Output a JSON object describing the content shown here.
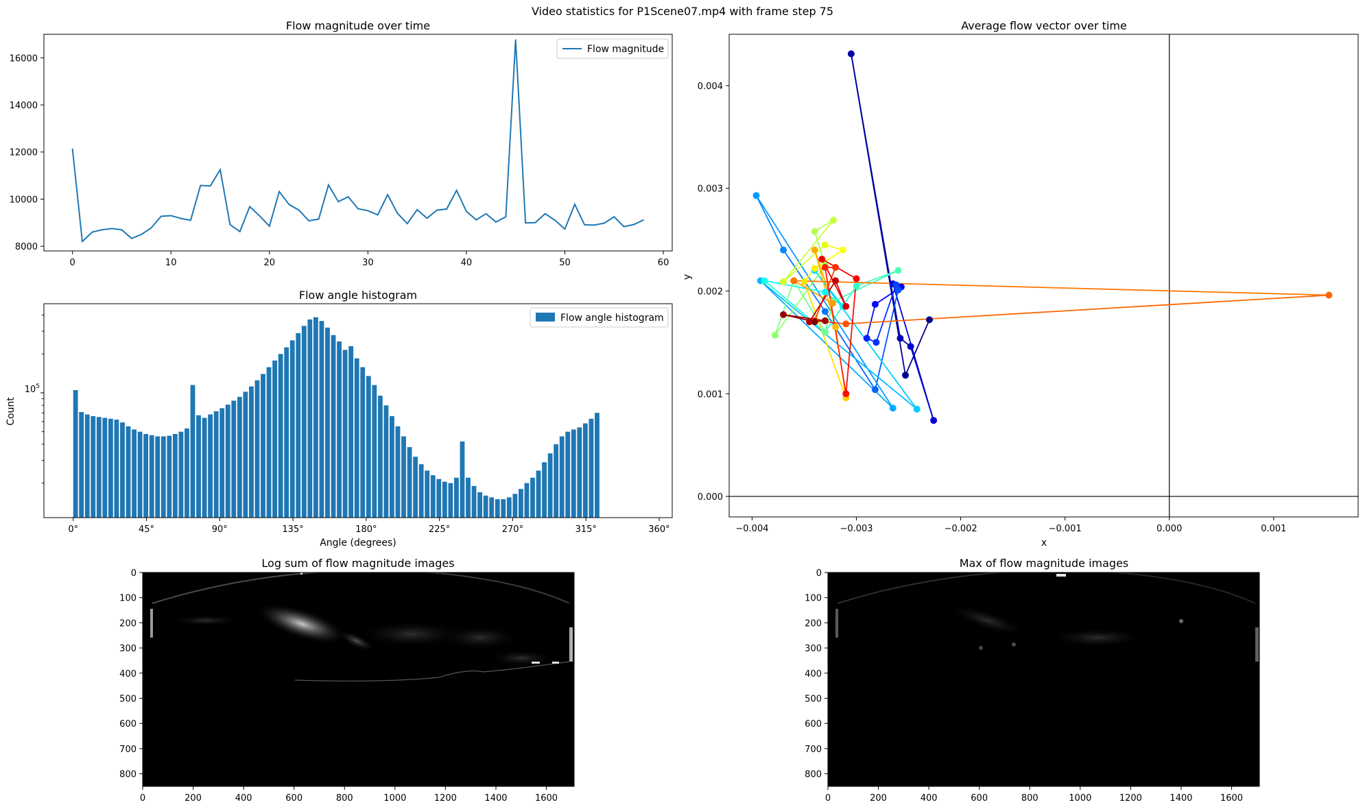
{
  "suptitle": "Video statistics for P1Scene07.mp4 with frame step 75",
  "chart_data": [
    {
      "type": "line",
      "title": "Flow magnitude over time",
      "xlabel": "",
      "ylabel": "",
      "legend": {
        "labels": [
          "Flow magnitude"
        ],
        "placement": "top-right"
      },
      "xlim": [
        -2.9,
        60.9
      ],
      "ylim": [
        7800,
        17000
      ],
      "xticks": [
        0,
        10,
        20,
        30,
        40,
        50,
        60
      ],
      "yticks": [
        8000,
        10000,
        12000,
        14000,
        16000
      ],
      "series": [
        {
          "name": "Flow magnitude",
          "color": "#1f77b4",
          "x": [
            0,
            1,
            2,
            3,
            4,
            5,
            6,
            7,
            8,
            9,
            10,
            11,
            12,
            13,
            14,
            15,
            16,
            17,
            18,
            19,
            20,
            21,
            22,
            23,
            24,
            25,
            26,
            27,
            28,
            29,
            30,
            31,
            32,
            33,
            34,
            35,
            36,
            37,
            38,
            39,
            40,
            41,
            42,
            43,
            44,
            45,
            46,
            47,
            48,
            49,
            50,
            51,
            52,
            53,
            54,
            55,
            56,
            57,
            58
          ],
          "values": [
            12150,
            8200,
            8600,
            8700,
            8750,
            8700,
            8330,
            8500,
            8780,
            9270,
            9300,
            9180,
            9100,
            10580,
            10560,
            11250,
            8920,
            8620,
            9680,
            9290,
            8850,
            10320,
            9770,
            9530,
            9080,
            9150,
            10600,
            9890,
            10100,
            9590,
            9510,
            9330,
            10190,
            9400,
            8960,
            9550,
            9190,
            9530,
            9580,
            10370,
            9480,
            9120,
            9380,
            9030,
            9250,
            16780,
            8990,
            9000,
            9380,
            9100,
            8730,
            9780,
            8910,
            8900,
            8980,
            9250,
            8830,
            8920,
            9120
          ]
        }
      ]
    },
    {
      "type": "bar",
      "title": "Flow angle histogram",
      "xlabel": "Angle (degrees)",
      "ylabel": "Count",
      "yscale": "log",
      "ylim": [
        10800,
        490000
      ],
      "xlim": [
        -18,
        368
      ],
      "legend": {
        "labels": [
          "Flow angle histogram"
        ],
        "placement": "top-right"
      },
      "ytick_label_base": "10",
      "ytick_label_exp": "5",
      "xticks": [
        0,
        45,
        90,
        135,
        180,
        225,
        270,
        315,
        360
      ],
      "xtick_labels": [
        "0°",
        "45°",
        "90°",
        "135°",
        "180°",
        "225°",
        "270°",
        "315°",
        "360°"
      ],
      "bin_width": 3.6,
      "series": [
        {
          "name": "Flow angle histogram",
          "color": "#1f77b4",
          "values": [
            105000,
            71000,
            68000,
            66000,
            65000,
            64000,
            63000,
            62000,
            59000,
            55000,
            52000,
            50000,
            48000,
            47000,
            46000,
            46000,
            46500,
            48000,
            50000,
            53000,
            115000,
            67000,
            64000,
            68000,
            72000,
            76000,
            81000,
            87000,
            93000,
            102000,
            112000,
            125000,
            140000,
            158000,
            178000,
            200000,
            225000,
            255000,
            290000,
            330000,
            370000,
            385000,
            360000,
            320000,
            280000,
            250000,
            215000,
            230000,
            185000,
            158000,
            135000,
            115000,
            95000,
            80000,
            66000,
            55000,
            46000,
            38000,
            32000,
            28000,
            25000,
            23000,
            21500,
            20500,
            20000,
            22000,
            42000,
            22000,
            19000,
            17000,
            16000,
            15500,
            15000,
            15000,
            15500,
            16500,
            18000,
            20000,
            22000,
            25000,
            29000,
            34000,
            40000,
            46000,
            50000,
            52000,
            54000,
            58000,
            63000,
            70000
          ]
        }
      ]
    },
    {
      "type": "scatter",
      "title": "Average flow vector over time",
      "xlabel": "x",
      "ylabel": "y",
      "xlim": [
        -0.00422,
        0.00181
      ],
      "ylim": [
        -0.0002,
        0.0045
      ],
      "xticks": [
        -0.004,
        -0.003,
        -0.002,
        -0.001,
        0.0,
        0.001
      ],
      "xtick_labels": [
        "−0.004",
        "−0.003",
        "−0.002",
        "−0.001",
        "0.000",
        "0.001"
      ],
      "yticks": [
        0.0,
        0.001,
        0.002,
        0.003,
        0.004
      ],
      "ytick_labels": [
        "0.000",
        "0.001",
        "0.002",
        "0.003",
        "0.004"
      ],
      "reference_lines": {
        "x": 0,
        "y": 0
      },
      "colormap": "jet",
      "points_x": [
        -0.0023,
        -0.00253,
        -0.00305,
        -0.00258,
        -0.00248,
        -0.00226,
        -0.00265,
        -0.00257,
        -0.00282,
        -0.0029,
        -0.00281,
        -0.00262,
        -0.0026,
        -0.00282,
        -0.0033,
        -0.0037,
        -0.00396,
        -0.00265,
        -0.00392,
        -0.00242,
        -0.0034,
        -0.00313,
        -0.0033,
        -0.00388,
        -0.0033,
        -0.003,
        -0.0026,
        -0.00322,
        -0.0033,
        -0.0036,
        -0.00378,
        -0.0033,
        -0.0034,
        -0.00322,
        -0.0037,
        -0.0033,
        -0.00313,
        -0.0034,
        -0.0035,
        -0.0031,
        -0.0032,
        -0.0034,
        -0.00323,
        -0.0036,
        -0.0036,
        0.00153,
        -0.0031,
        -0.0034,
        -0.0032,
        -0.0033,
        -0.0031,
        -0.003,
        -0.00333,
        -0.0031,
        -0.0032,
        -0.00345,
        -0.0033,
        -0.0037,
        -0.0034
      ],
      "points_y": [
        0.00172,
        0.00118,
        0.00431,
        0.00154,
        0.00146,
        0.00074,
        0.00207,
        0.00204,
        0.00187,
        0.00154,
        0.0015,
        0.00206,
        0.00201,
        0.00104,
        0.0018,
        0.0024,
        0.00293,
        0.00086,
        0.0021,
        0.00085,
        0.0022,
        0.00185,
        0.00199,
        0.0021,
        0.0016,
        0.00205,
        0.0022,
        0.0019,
        0.0016,
        0.0021,
        0.00157,
        0.00225,
        0.00258,
        0.00269,
        0.00209,
        0.00245,
        0.0024,
        0.00222,
        0.00209,
        0.00096,
        0.00165,
        0.0024,
        0.00188,
        0.0021,
        0.0021,
        0.00196,
        0.00168,
        0.00171,
        0.00223,
        0.00223,
        0.001,
        0.00212,
        0.00231,
        0.00185,
        0.0021,
        0.0017,
        0.00171,
        0.00177,
        0.0017
      ]
    },
    {
      "type": "heatmap",
      "title": "Log sum of flow magnitude images",
      "xticks": [
        0,
        200,
        400,
        600,
        800,
        1000,
        1200,
        1400,
        1600
      ],
      "yticks": [
        0,
        100,
        200,
        300,
        400,
        500,
        600,
        700,
        800
      ],
      "xlim": [
        0,
        1710
      ],
      "ylim": [
        850,
        0
      ]
    },
    {
      "type": "heatmap",
      "title": "Max of flow magnitude images",
      "xticks": [
        0,
        200,
        400,
        600,
        800,
        1000,
        1200,
        1400,
        1600
      ],
      "yticks": [
        0,
        100,
        200,
        300,
        400,
        500,
        600,
        700,
        800
      ],
      "xlim": [
        0,
        1710
      ],
      "ylim": [
        850,
        0
      ]
    }
  ]
}
